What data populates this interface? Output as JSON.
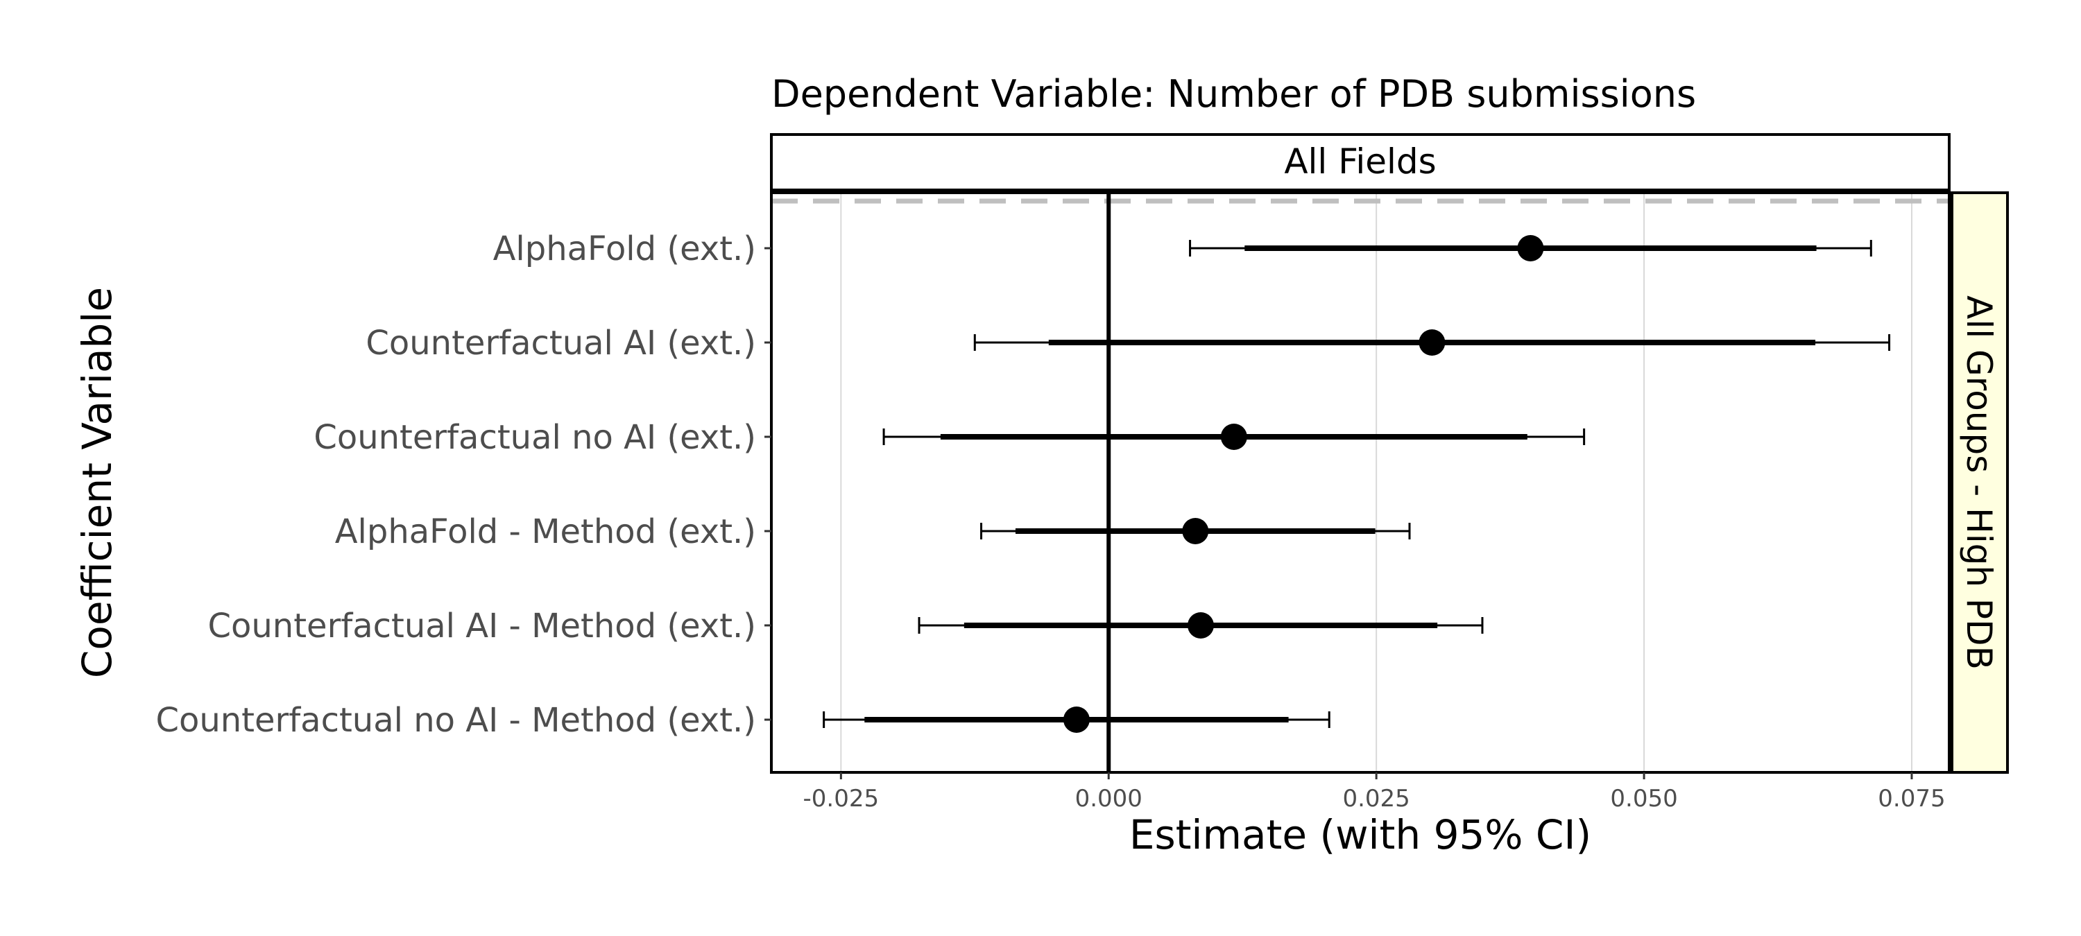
{
  "chart_data": {
    "type": "scatter",
    "subtype": "coefficient-plot",
    "title": "Dependent Variable: Number of PDB submissions",
    "facet_top": "All Fields",
    "facet_right": "All Groups - High PDB",
    "xlabel": "Estimate (with 95% CI)",
    "ylabel": "Coefficient Variable",
    "xlim": [
      -0.0315,
      0.0785
    ],
    "x_ticks": [
      -0.025,
      0.0,
      0.025,
      0.05,
      0.075
    ],
    "x_tick_labels": [
      "-0.025",
      "0.000",
      "0.025",
      "0.050",
      "0.075"
    ],
    "reference_line": 0.0,
    "grid": "vertical major",
    "colors": {
      "marks": "#000000",
      "grid": "#d9d9d9",
      "dashed_line": "#bfbfbf",
      "strip_right_fill": "#ffffe0",
      "strip_top_fill": "#ffffff",
      "label_gray": "#4d4d4d"
    },
    "series": [
      {
        "categories": [
          "AlphaFold (ext.)",
          "Counterfactual AI (ext.)",
          "Counterfactual no AI (ext.)",
          "AlphaFold - Method (ext.)",
          "Counterfactual AI - Method (ext.)",
          "Counterfactual no AI - Method (ext.)"
        ],
        "estimate": [
          0.0394,
          0.0302,
          0.0117,
          0.0081,
          0.0086,
          -0.003
        ],
        "ci95_low": [
          0.0076,
          -0.0125,
          -0.021,
          -0.0119,
          -0.0177,
          -0.0266
        ],
        "ci95_high": [
          0.0712,
          0.0729,
          0.0444,
          0.0281,
          0.0349,
          0.0206
        ],
        "ci_inner_low": [
          0.0127,
          -0.0056,
          -0.0157,
          -0.0087,
          -0.0135,
          -0.0228
        ],
        "ci_inner_high": [
          0.0661,
          0.066,
          0.0391,
          0.0249,
          0.0307,
          0.0168
        ]
      }
    ]
  }
}
